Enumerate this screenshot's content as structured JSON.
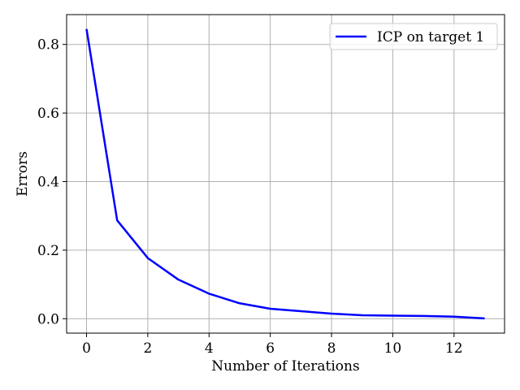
{
  "chart_data": {
    "type": "line",
    "title": "",
    "xlabel": "Number of Iterations",
    "ylabel": "Errors",
    "xlim": [
      -0.65,
      13.65
    ],
    "ylim": [
      -0.042,
      0.887
    ],
    "xticks": [
      0,
      2,
      4,
      6,
      8,
      10,
      12
    ],
    "yticks": [
      0.0,
      0.2,
      0.4,
      0.6,
      0.8
    ],
    "xtick_labels": [
      "0",
      "2",
      "4",
      "6",
      "8",
      "10",
      "12"
    ],
    "ytick_labels": [
      "0.0",
      "0.2",
      "0.4",
      "0.6",
      "0.8"
    ],
    "grid": true,
    "legend_position": "top-right",
    "series": [
      {
        "name": "ICP on target 1",
        "color": "#0000ff",
        "x": [
          0,
          1,
          2,
          3,
          4,
          5,
          6,
          7,
          8,
          9,
          10,
          11,
          12,
          13
        ],
        "y": [
          0.845,
          0.287,
          0.177,
          0.114,
          0.073,
          0.045,
          0.029,
          0.022,
          0.015,
          0.01,
          0.009,
          0.008,
          0.006,
          0.001
        ]
      }
    ]
  }
}
